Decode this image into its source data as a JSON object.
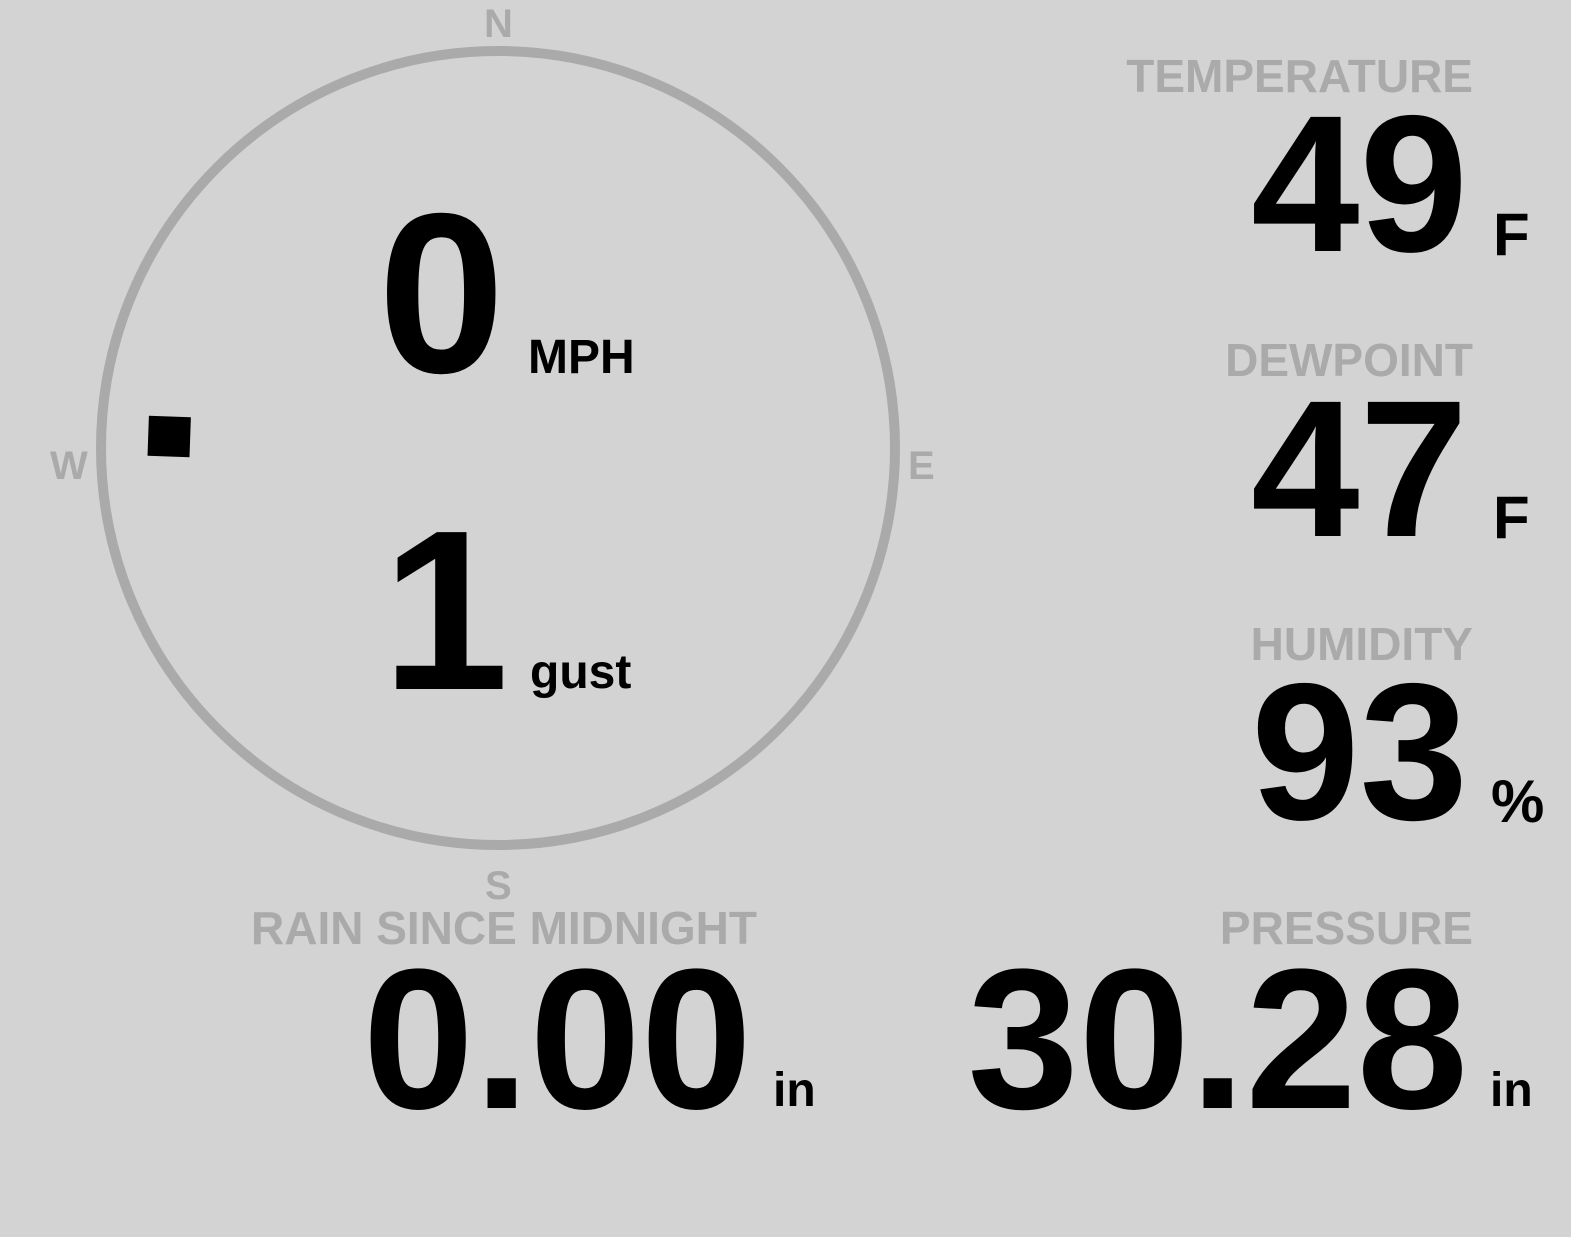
{
  "colors": {
    "background": "#d3d3d3",
    "label": "#aaaaaa",
    "value": "#000000",
    "compass_ring": "#aaaaaa",
    "wind_marker": "#000000"
  },
  "compass": {
    "north": "N",
    "east": "E",
    "south": "S",
    "west": "W"
  },
  "wind": {
    "speed": "0",
    "speed_unit": "MPH",
    "gust": "1",
    "gust_label": "gust",
    "direction_deg": 272
  },
  "temperature": {
    "label": "TEMPERATURE",
    "value": "49",
    "unit": "F"
  },
  "dewpoint": {
    "label": "DEWPOINT",
    "value": "47",
    "unit": "F"
  },
  "humidity": {
    "label": "HUMIDITY",
    "value": "93",
    "unit": "%"
  },
  "rain": {
    "label": "RAIN SINCE MIDNIGHT",
    "value": "0.00",
    "unit": "in"
  },
  "pressure": {
    "label": "PRESSURE",
    "value": "30.28",
    "unit": "in"
  }
}
